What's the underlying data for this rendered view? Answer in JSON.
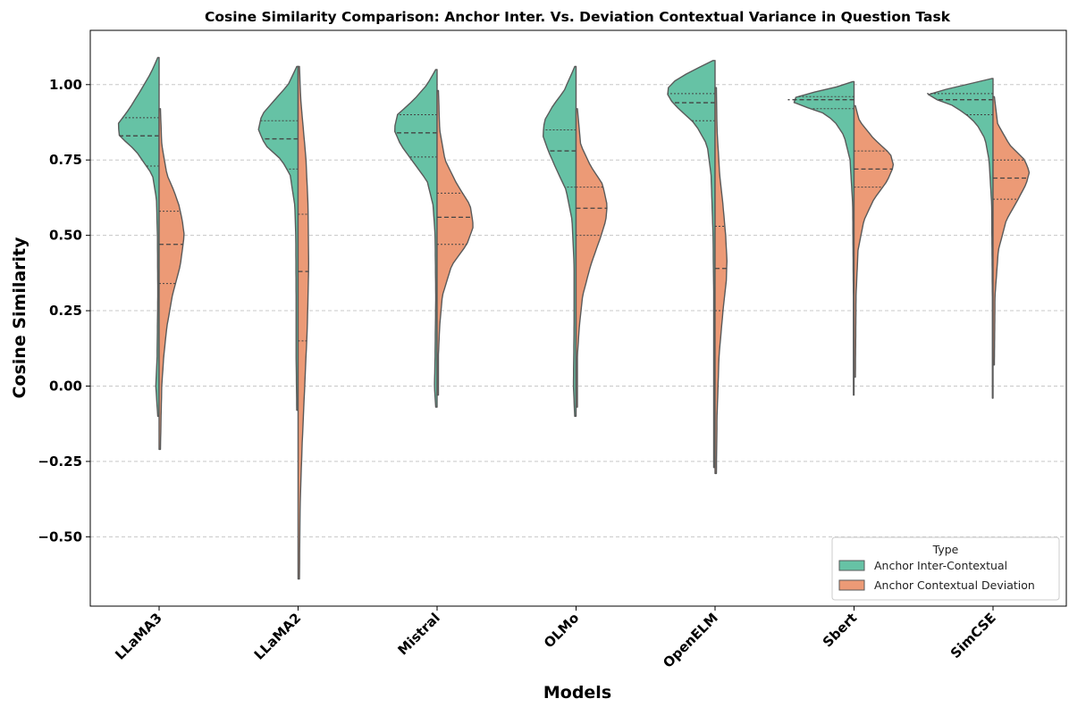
{
  "chart_data": {
    "type": "violin",
    "split": true,
    "title": "Cosine Similarity Comparison: Anchor Inter. Vs. Deviation Contextual Variance in Question Task",
    "xlabel": "Models",
    "ylabel": "Cosine Similarity",
    "ylim": [
      -0.73,
      1.18
    ],
    "yticks": [
      -0.5,
      -0.25,
      0.0,
      0.25,
      0.5,
      0.75,
      1.0
    ],
    "ytick_labels": [
      "−0.50",
      "−0.25",
      "0.00",
      "0.25",
      "0.50",
      "0.75",
      "1.00"
    ],
    "grid": "horizontal dashed",
    "legend": {
      "title": "Type",
      "placement": "lower-right",
      "entries": [
        "Anchor Inter-Contextual",
        "Anchor Contextual Deviation"
      ]
    },
    "colors": {
      "Anchor Inter-Contextual": "#66c2a5",
      "Anchor Contextual Deviation": "#ec9a76",
      "outline": "#5a5a5a",
      "grid": "#c8c8c8"
    },
    "categories": [
      "LLaMA3",
      "LLaMA2",
      "Mistral",
      "OLMo",
      "OpenELM",
      "Sbert",
      "SimCSE"
    ],
    "series": [
      {
        "name": "Anchor Inter-Contextual",
        "side": "left",
        "groups": [
          {
            "y": [
              -0.1,
              0.0,
              0.1,
              0.3,
              0.5,
              0.62,
              0.7,
              0.78,
              0.83,
              0.87,
              0.92,
              0.98,
              1.04,
              1.09
            ],
            "w": [
              0.02,
              0.05,
              0.03,
              0.02,
              0.025,
              0.04,
              0.1,
              0.35,
              0.6,
              0.62,
              0.45,
              0.28,
              0.12,
              0.02
            ],
            "quartiles": [
              0.73,
              0.83,
              0.89
            ]
          },
          {
            "y": [
              -0.08,
              0.1,
              0.3,
              0.5,
              0.6,
              0.7,
              0.75,
              0.8,
              0.85,
              0.9,
              0.95,
              1.0,
              1.06
            ],
            "w": [
              0.02,
              0.03,
              0.03,
              0.035,
              0.05,
              0.12,
              0.25,
              0.5,
              0.6,
              0.55,
              0.35,
              0.15,
              0.02
            ],
            "quartiles": [
              0.72,
              0.82,
              0.88
            ]
          },
          {
            "y": [
              -0.07,
              0.0,
              0.1,
              0.3,
              0.5,
              0.6,
              0.68,
              0.74,
              0.8,
              0.85,
              0.9,
              0.95,
              1.0,
              1.05
            ],
            "w": [
              0.02,
              0.04,
              0.03,
              0.02,
              0.03,
              0.06,
              0.15,
              0.35,
              0.55,
              0.65,
              0.6,
              0.35,
              0.15,
              0.02
            ],
            "quartiles": [
              0.76,
              0.84,
              0.9
            ]
          },
          {
            "y": [
              -0.1,
              0.0,
              0.2,
              0.4,
              0.55,
              0.65,
              0.72,
              0.78,
              0.83,
              0.88,
              0.93,
              0.98,
              1.06
            ],
            "w": [
              0.02,
              0.04,
              0.03,
              0.03,
              0.06,
              0.15,
              0.3,
              0.42,
              0.5,
              0.48,
              0.35,
              0.18,
              0.02
            ],
            "quartiles": [
              0.66,
              0.78,
              0.85
            ]
          },
          {
            "y": [
              -0.27,
              -0.1,
              0.1,
              0.3,
              0.5,
              0.7,
              0.8,
              0.87,
              0.92,
              0.96,
              1.0,
              1.04,
              1.08
            ],
            "w": [
              0.02,
              0.02,
              0.02,
              0.02,
              0.03,
              0.06,
              0.12,
              0.3,
              0.55,
              0.72,
              0.7,
              0.4,
              0.03
            ],
            "quartiles": [
              0.88,
              0.94,
              0.97
            ]
          },
          {
            "y": [
              -0.03,
              0.3,
              0.6,
              0.75,
              0.83,
              0.88,
              0.91,
              0.93,
              0.95,
              0.97,
              0.99,
              1.01
            ],
            "w": [
              0.01,
              0.01,
              0.02,
              0.06,
              0.15,
              0.3,
              0.5,
              0.8,
              1.0,
              0.7,
              0.3,
              0.02
            ],
            "quartiles": [
              0.92,
              0.95,
              0.96
            ]
          },
          {
            "y": [
              -0.04,
              0.3,
              0.6,
              0.75,
              0.82,
              0.87,
              0.9,
              0.93,
              0.95,
              0.97,
              0.99,
              1.02
            ],
            "w": [
              0.01,
              0.01,
              0.02,
              0.06,
              0.12,
              0.25,
              0.4,
              0.6,
              0.85,
              1.0,
              0.6,
              0.02
            ],
            "quartiles": [
              0.9,
              0.95,
              0.97
            ]
          }
        ]
      },
      {
        "name": "Anchor Contextual Deviation",
        "side": "right",
        "groups": [
          {
            "y": [
              -0.21,
              -0.1,
              0.0,
              0.1,
              0.2,
              0.3,
              0.4,
              0.5,
              0.55,
              0.6,
              0.65,
              0.7,
              0.8,
              0.92
            ],
            "w": [
              0.02,
              0.03,
              0.04,
              0.07,
              0.12,
              0.2,
              0.32,
              0.38,
              0.35,
              0.3,
              0.22,
              0.12,
              0.04,
              0.02
            ],
            "quartiles": [
              0.34,
              0.47,
              0.58
            ]
          },
          {
            "y": [
              -0.64,
              -0.4,
              -0.2,
              0.0,
              0.2,
              0.4,
              0.6,
              0.75,
              0.85,
              0.95,
              1.06
            ],
            "w": [
              0.02,
              0.03,
              0.06,
              0.1,
              0.14,
              0.16,
              0.15,
              0.12,
              0.08,
              0.04,
              0.02
            ],
            "quartiles": [
              0.15,
              0.38,
              0.57
            ]
          },
          {
            "y": [
              -0.03,
              0.1,
              0.2,
              0.3,
              0.4,
              0.47,
              0.53,
              0.6,
              0.67,
              0.75,
              0.85,
              0.98
            ],
            "w": [
              0.02,
              0.02,
              0.04,
              0.08,
              0.22,
              0.45,
              0.55,
              0.5,
              0.3,
              0.12,
              0.04,
              0.02
            ],
            "quartiles": [
              0.47,
              0.56,
              0.64
            ]
          },
          {
            "y": [
              -0.07,
              0.1,
              0.2,
              0.3,
              0.4,
              0.5,
              0.55,
              0.6,
              0.67,
              0.73,
              0.8,
              0.92
            ],
            "w": [
              0.02,
              0.02,
              0.05,
              0.1,
              0.22,
              0.38,
              0.45,
              0.47,
              0.4,
              0.22,
              0.07,
              0.02
            ],
            "quartiles": [
              0.5,
              0.59,
              0.66
            ]
          },
          {
            "y": [
              -0.29,
              -0.1,
              0.1,
              0.25,
              0.35,
              0.42,
              0.5,
              0.6,
              0.7,
              0.85,
              0.99
            ],
            "w": [
              0.02,
              0.03,
              0.06,
              0.12,
              0.17,
              0.18,
              0.16,
              0.12,
              0.07,
              0.03,
              0.02
            ],
            "quartiles": [
              0.25,
              0.39,
              0.53
            ]
          },
          {
            "y": [
              0.03,
              0.3,
              0.45,
              0.55,
              0.62,
              0.68,
              0.73,
              0.77,
              0.82,
              0.88,
              0.93
            ],
            "w": [
              0.02,
              0.03,
              0.06,
              0.15,
              0.3,
              0.5,
              0.6,
              0.55,
              0.3,
              0.08,
              0.02
            ],
            "quartiles": [
              0.66,
              0.72,
              0.78
            ]
          },
          {
            "y": [
              0.07,
              0.3,
              0.45,
              0.55,
              0.62,
              0.67,
              0.71,
              0.75,
              0.8,
              0.87,
              0.96
            ],
            "w": [
              0.02,
              0.03,
              0.08,
              0.2,
              0.38,
              0.5,
              0.55,
              0.48,
              0.25,
              0.07,
              0.02
            ],
            "quartiles": [
              0.62,
              0.69,
              0.75
            ]
          }
        ]
      }
    ]
  }
}
